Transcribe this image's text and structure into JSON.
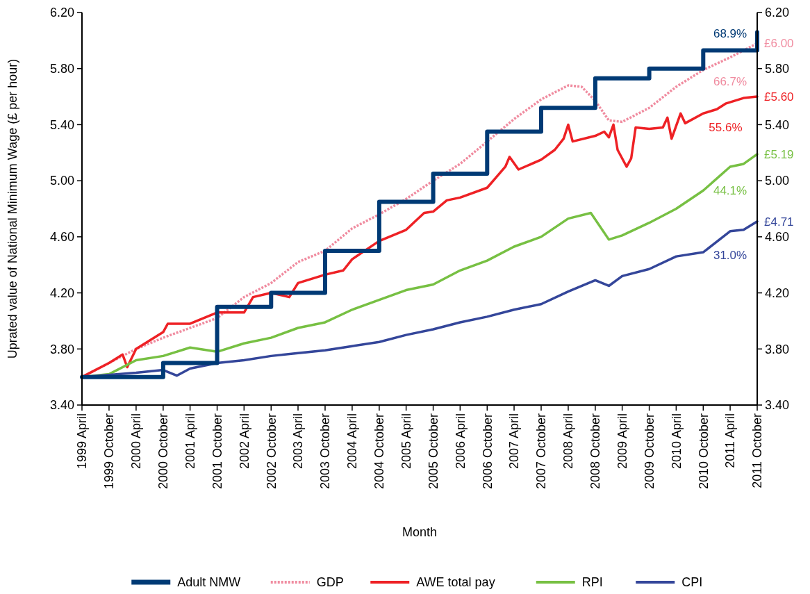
{
  "chart_data": {
    "type": "line",
    "xlabel": "Month",
    "ylabel": "Uprated value of National Minimum Wage (£ per hour)",
    "xlim": [
      "1999-04",
      "2011-10"
    ],
    "xticks": [
      {
        "value": "1999-04",
        "label": "1999 April"
      },
      {
        "value": "1999-10",
        "label": "1999 October"
      },
      {
        "value": "2000-04",
        "label": "2000 April"
      },
      {
        "value": "2000-10",
        "label": "2000 October"
      },
      {
        "value": "2001-04",
        "label": "2001 April"
      },
      {
        "value": "2001-10",
        "label": "2001 October"
      },
      {
        "value": "2002-04",
        "label": "2002 April"
      },
      {
        "value": "2002-10",
        "label": "2002 October"
      },
      {
        "value": "2003-04",
        "label": "2003 April"
      },
      {
        "value": "2003-10",
        "label": "2003 October"
      },
      {
        "value": "2004-04",
        "label": "2004 April"
      },
      {
        "value": "2004-10",
        "label": "2004 October"
      },
      {
        "value": "2005-04",
        "label": "2005 April"
      },
      {
        "value": "2005-10",
        "label": "2005 October"
      },
      {
        "value": "2006-04",
        "label": "2006 April"
      },
      {
        "value": "2006-10",
        "label": "2006 October"
      },
      {
        "value": "2007-04",
        "label": "2007 April"
      },
      {
        "value": "2007-10",
        "label": "2007 October"
      },
      {
        "value": "2008-04",
        "label": "2008 April"
      },
      {
        "value": "2008-10",
        "label": "2008 October"
      },
      {
        "value": "2009-04",
        "label": "2009 April"
      },
      {
        "value": "2009-10",
        "label": "2009 October"
      },
      {
        "value": "2010-04",
        "label": "2010 April"
      },
      {
        "value": "2010-10",
        "label": "2010 October"
      },
      {
        "value": "2011-04",
        "label": "2011 April"
      },
      {
        "value": "2011-10",
        "label": "2011 October"
      }
    ],
    "ylim": [
      3.4,
      6.2
    ],
    "yticks": [
      {
        "value": 3.4,
        "label": "3.40"
      },
      {
        "value": 3.8,
        "label": "3.80"
      },
      {
        "value": 4.2,
        "label": "4.20"
      },
      {
        "value": 4.6,
        "label": "4.60"
      },
      {
        "value": 5.0,
        "label": "5.00"
      },
      {
        "value": 5.4,
        "label": "5.40"
      },
      {
        "value": 5.8,
        "label": "5.80"
      },
      {
        "value": 6.2,
        "label": "6.20"
      }
    ],
    "y2lim": [
      3.4,
      6.2
    ],
    "y2ticks": [
      {
        "value": 3.4,
        "label": "3.40"
      },
      {
        "value": 3.8,
        "label": "3.80"
      },
      {
        "value": 4.2,
        "label": "4.20"
      },
      {
        "value": 4.6,
        "label": "4.60"
      },
      {
        "value": 5.0,
        "label": "5.00"
      },
      {
        "value": 5.4,
        "label": "5.40"
      },
      {
        "value": 5.8,
        "label": "5.80"
      },
      {
        "value": 6.2,
        "label": "6.20"
      }
    ],
    "grid": false,
    "legend": "bottom",
    "series": [
      {
        "name": "Adult NMW",
        "type": "step",
        "color": "#003a75",
        "x": [
          "1999-04",
          "2000-10",
          "2001-10",
          "2002-10",
          "2003-10",
          "2004-10",
          "2005-10",
          "2006-10",
          "2007-10",
          "2008-10",
          "2009-10",
          "2010-10",
          "2011-10"
        ],
        "values": [
          3.6,
          3.7,
          4.1,
          4.2,
          4.5,
          4.85,
          5.05,
          5.35,
          5.52,
          5.73,
          5.8,
          5.93,
          6.06
        ]
      },
      {
        "name": "GDP",
        "color": "#f08ca0",
        "line_style": "dotted",
        "x": [
          "1999-04",
          "2000-04",
          "2000-10",
          "2001-04",
          "2001-10",
          "2002-04",
          "2002-10",
          "2003-04",
          "2003-10",
          "2004-04",
          "2004-10",
          "2005-04",
          "2005-10",
          "2006-04",
          "2006-10",
          "2007-04",
          "2007-10",
          "2008-04",
          "2008-07",
          "2008-10",
          "2009-01",
          "2009-04",
          "2009-10",
          "2010-04",
          "2010-10",
          "2011-04",
          "2011-10"
        ],
        "values": [
          3.6,
          3.8,
          3.88,
          3.95,
          4.02,
          4.17,
          4.27,
          4.42,
          4.5,
          4.66,
          4.76,
          4.87,
          5.0,
          5.12,
          5.28,
          5.44,
          5.58,
          5.68,
          5.67,
          5.57,
          5.43,
          5.42,
          5.52,
          5.67,
          5.79,
          5.88,
          5.98
        ]
      },
      {
        "name": "AWE total pay",
        "color": "#ee2125",
        "x": [
          "1999-04",
          "1999-10",
          "2000-01",
          "2000-02",
          "2000-04",
          "2000-10",
          "2000-11",
          "2001-04",
          "2001-10",
          "2002-04",
          "2002-06",
          "2002-10",
          "2003-02",
          "2003-04",
          "2003-10",
          "2004-02",
          "2004-04",
          "2004-10",
          "2005-04",
          "2005-08",
          "2005-10",
          "2006-01",
          "2006-04",
          "2006-10",
          "2007-02",
          "2007-03",
          "2007-05",
          "2007-10",
          "2008-01",
          "2008-03",
          "2008-04",
          "2008-05",
          "2008-10",
          "2008-12",
          "2009-01",
          "2009-02",
          "2009-03",
          "2009-05",
          "2009-06",
          "2009-07",
          "2009-10",
          "2010-01",
          "2010-02",
          "2010-03",
          "2010-05",
          "2010-06",
          "2010-10",
          "2011-01",
          "2011-03",
          "2011-07",
          "2011-10"
        ],
        "values": [
          3.6,
          3.7,
          3.76,
          3.67,
          3.8,
          3.92,
          3.98,
          3.98,
          4.06,
          4.06,
          4.17,
          4.2,
          4.17,
          4.27,
          4.33,
          4.36,
          4.44,
          4.57,
          4.65,
          4.77,
          4.78,
          4.86,
          4.88,
          4.95,
          5.1,
          5.17,
          5.08,
          5.15,
          5.22,
          5.3,
          5.4,
          5.28,
          5.32,
          5.35,
          5.31,
          5.4,
          5.22,
          5.1,
          5.16,
          5.38,
          5.37,
          5.38,
          5.45,
          5.3,
          5.48,
          5.41,
          5.48,
          5.51,
          5.55,
          5.59,
          5.6
        ]
      },
      {
        "name": "RPI",
        "color": "#77c043",
        "x": [
          "1999-04",
          "1999-10",
          "2000-04",
          "2000-10",
          "2001-04",
          "2001-10",
          "2002-04",
          "2002-10",
          "2003-04",
          "2003-10",
          "2004-04",
          "2004-10",
          "2005-04",
          "2005-10",
          "2006-04",
          "2006-10",
          "2007-04",
          "2007-10",
          "2008-04",
          "2008-09",
          "2009-01",
          "2009-04",
          "2009-10",
          "2010-04",
          "2010-10",
          "2011-04",
          "2011-07",
          "2011-10"
        ],
        "values": [
          3.6,
          3.62,
          3.72,
          3.75,
          3.81,
          3.78,
          3.84,
          3.88,
          3.95,
          3.99,
          4.08,
          4.15,
          4.22,
          4.26,
          4.36,
          4.43,
          4.53,
          4.6,
          4.73,
          4.77,
          4.58,
          4.61,
          4.7,
          4.8,
          4.93,
          5.1,
          5.12,
          5.19
        ]
      },
      {
        "name": "CPI",
        "color": "#34469a",
        "x": [
          "1999-04",
          "2000-04",
          "2000-10",
          "2001-01",
          "2001-04",
          "2001-10",
          "2002-04",
          "2002-10",
          "2003-04",
          "2003-10",
          "2004-04",
          "2004-10",
          "2005-04",
          "2005-10",
          "2006-04",
          "2006-10",
          "2007-04",
          "2007-10",
          "2008-04",
          "2008-10",
          "2009-01",
          "2009-04",
          "2009-10",
          "2010-04",
          "2010-10",
          "2011-04",
          "2011-07",
          "2011-10"
        ],
        "values": [
          3.6,
          3.63,
          3.65,
          3.61,
          3.66,
          3.7,
          3.72,
          3.75,
          3.77,
          3.79,
          3.82,
          3.85,
          3.9,
          3.94,
          3.99,
          4.03,
          4.08,
          4.12,
          4.21,
          4.29,
          4.25,
          4.32,
          4.37,
          4.46,
          4.49,
          4.64,
          4.65,
          4.71
        ]
      }
    ],
    "annotations": [
      {
        "text": "68.9%",
        "x": "2011-04",
        "y": 5.93
      },
      {
        "text": "£6.00",
        "x": "2011-10",
        "y": 5.98
      },
      {
        "text": "66.7%",
        "x": "2011-04",
        "y": 5.88
      },
      {
        "text": "£5.60",
        "x": "2011-10",
        "y": 5.6
      },
      {
        "text": "55.6%",
        "x": "2011-03",
        "y": 5.55
      },
      {
        "text": "£5.19",
        "x": "2011-10",
        "y": 5.19
      },
      {
        "text": "44.1%",
        "x": "2011-04",
        "y": 5.1
      },
      {
        "text": "£4.71",
        "x": "2011-10",
        "y": 4.71
      },
      {
        "text": "31.0%",
        "x": "2011-04",
        "y": 4.64
      }
    ]
  }
}
